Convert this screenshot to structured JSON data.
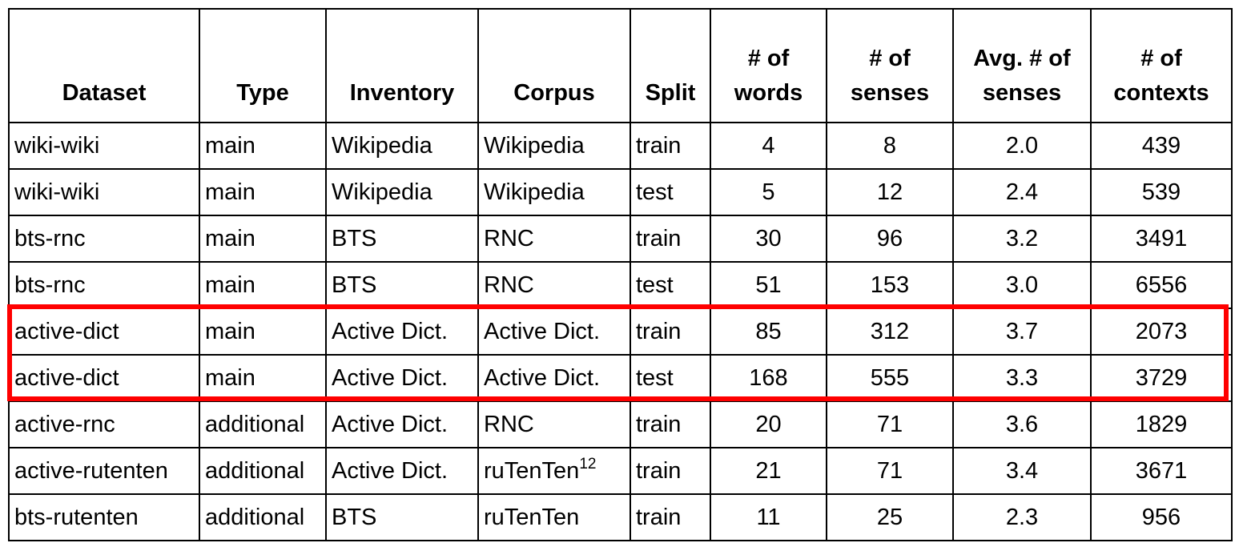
{
  "table": {
    "headers": [
      "Dataset",
      "Type",
      "Inventory",
      "Corpus",
      "Split",
      "# of words",
      "# of senses",
      "Avg. # of senses",
      "# of contexts"
    ],
    "header_lines": [
      [
        "Dataset"
      ],
      [
        "Type"
      ],
      [
        "Inventory"
      ],
      [
        "Corpus"
      ],
      [
        "Split"
      ],
      [
        "# of",
        "words"
      ],
      [
        "# of",
        "senses"
      ],
      [
        "Avg. # of",
        "senses"
      ],
      [
        "# of",
        "contexts"
      ]
    ],
    "rows": [
      {
        "dataset": "wiki-wiki",
        "type": "main",
        "inventory": "Wikipedia",
        "corpus": "Wikipedia",
        "corpus_footnote": "",
        "split": "train",
        "words": "4",
        "senses": "8",
        "avg_senses": "2.0",
        "contexts": "439"
      },
      {
        "dataset": "wiki-wiki",
        "type": "main",
        "inventory": "Wikipedia",
        "corpus": "Wikipedia",
        "corpus_footnote": "",
        "split": "test",
        "words": "5",
        "senses": "12",
        "avg_senses": "2.4",
        "contexts": "539"
      },
      {
        "dataset": "bts-rnc",
        "type": "main",
        "inventory": "BTS",
        "corpus": "RNC",
        "corpus_footnote": "",
        "split": "train",
        "words": "30",
        "senses": "96",
        "avg_senses": "3.2",
        "contexts": "3491"
      },
      {
        "dataset": "bts-rnc",
        "type": "main",
        "inventory": "BTS",
        "corpus": "RNC",
        "corpus_footnote": "",
        "split": "test",
        "words": "51",
        "senses": "153",
        "avg_senses": "3.0",
        "contexts": "6556"
      },
      {
        "dataset": "active-dict",
        "type": "main",
        "inventory": "Active Dict.",
        "corpus": "Active Dict.",
        "corpus_footnote": "",
        "split": "train",
        "words": "85",
        "senses": "312",
        "avg_senses": "3.7",
        "contexts": "2073"
      },
      {
        "dataset": "active-dict",
        "type": "main",
        "inventory": "Active Dict.",
        "corpus": "Active Dict.",
        "corpus_footnote": "",
        "split": "test",
        "words": "168",
        "senses": "555",
        "avg_senses": "3.3",
        "contexts": "3729"
      },
      {
        "dataset": "active-rnc",
        "type": "additional",
        "inventory": "Active Dict.",
        "corpus": "RNC",
        "corpus_footnote": "",
        "split": "train",
        "words": "20",
        "senses": "71",
        "avg_senses": "3.6",
        "contexts": "1829"
      },
      {
        "dataset": "active-rutenten",
        "type": "additional",
        "inventory": "Active Dict.",
        "corpus": "ruTenTen",
        "corpus_footnote": "12",
        "split": "train",
        "words": "21",
        "senses": "71",
        "avg_senses": "3.4",
        "contexts": "3671"
      },
      {
        "dataset": "bts-rutenten",
        "type": "additional",
        "inventory": "BTS",
        "corpus": "ruTenTen",
        "corpus_footnote": "",
        "split": "train",
        "words": "11",
        "senses": "25",
        "avg_senses": "2.3",
        "contexts": "956"
      }
    ]
  },
  "highlight": {
    "color": "#ff0000",
    "rows": [
      "active-dict (train)",
      "active-dict (test)"
    ]
  }
}
